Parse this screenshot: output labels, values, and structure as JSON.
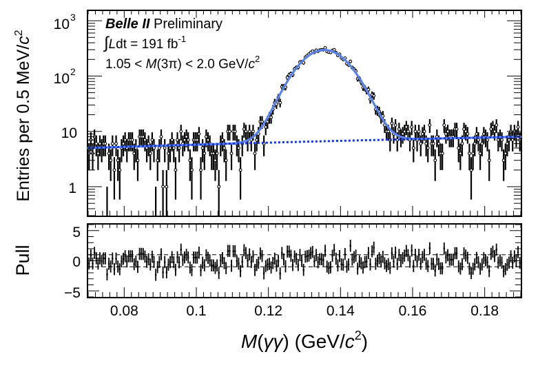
{
  "chart_data": {
    "type": "scatter",
    "x_range": [
      0.07,
      0.19
    ],
    "x_ticks": [
      "0.08",
      "0.1",
      "0.12",
      "0.14",
      "0.16",
      "0.18"
    ],
    "x_tick_values": [
      0.08,
      0.1,
      0.12,
      0.14,
      0.16,
      0.18
    ],
    "xlabel_parts": {
      "m": "M",
      "open": "(",
      "gg": "γγ",
      "mid": ") (GeV/",
      "c": "c",
      "sup": "2",
      "close": ")"
    },
    "main_panel": {
      "y_scale": "log",
      "y_range": [
        0.3,
        1500
      ],
      "ylabel_parts": {
        "text": "Entries per 0.5 MeV/",
        "c": "c",
        "sup": "2"
      },
      "y_ticks": [
        {
          "value": 1,
          "base": "1",
          "exp": ""
        },
        {
          "value": 10,
          "base": "10",
          "exp": ""
        },
        {
          "value": 100,
          "base": "10",
          "exp": "2"
        },
        {
          "value": 1000,
          "base": "10",
          "exp": "3"
        }
      ],
      "legend_text": {
        "belle": "Belle II",
        "prelim": " Preliminary",
        "lumi_integral": "∫",
        "lumi_L": "L",
        "lumi_rest": "dt = 191 fb",
        "lumi_exp": "-1",
        "mass_cut_a": "1.05 < ",
        "mass_cut_M": "M",
        "mass_cut_b": "(3π) < 2.0 GeV/",
        "mass_cut_c": "c",
        "mass_cut_exp": "2"
      },
      "signal_model": {
        "mean": 0.1355,
        "sigma": 0.0062,
        "peak_amplitude": 290
      },
      "background_model": {
        "value_at_0_07": 5.0,
        "value_at_0_19": 8.0
      },
      "colors": {
        "total_fit": "#5b82e8",
        "background_fit": "#1234d8",
        "points": "#000000"
      }
    },
    "pull_panel": {
      "y_range": [
        -6,
        6
      ],
      "ylabel": "Pull",
      "y_ticks": [
        {
          "value": 5,
          "label": "5"
        },
        {
          "value": 0,
          "label": "0"
        },
        {
          "value": -5,
          "label": "−5"
        }
      ],
      "reference_lines": [
        1,
        -1
      ]
    },
    "bins": {
      "width": 0.0005,
      "count": 240,
      "note": "Observed counts scatter around the fit model; pulls fluctuate between -5 and +3 with the same bin structure."
    }
  }
}
